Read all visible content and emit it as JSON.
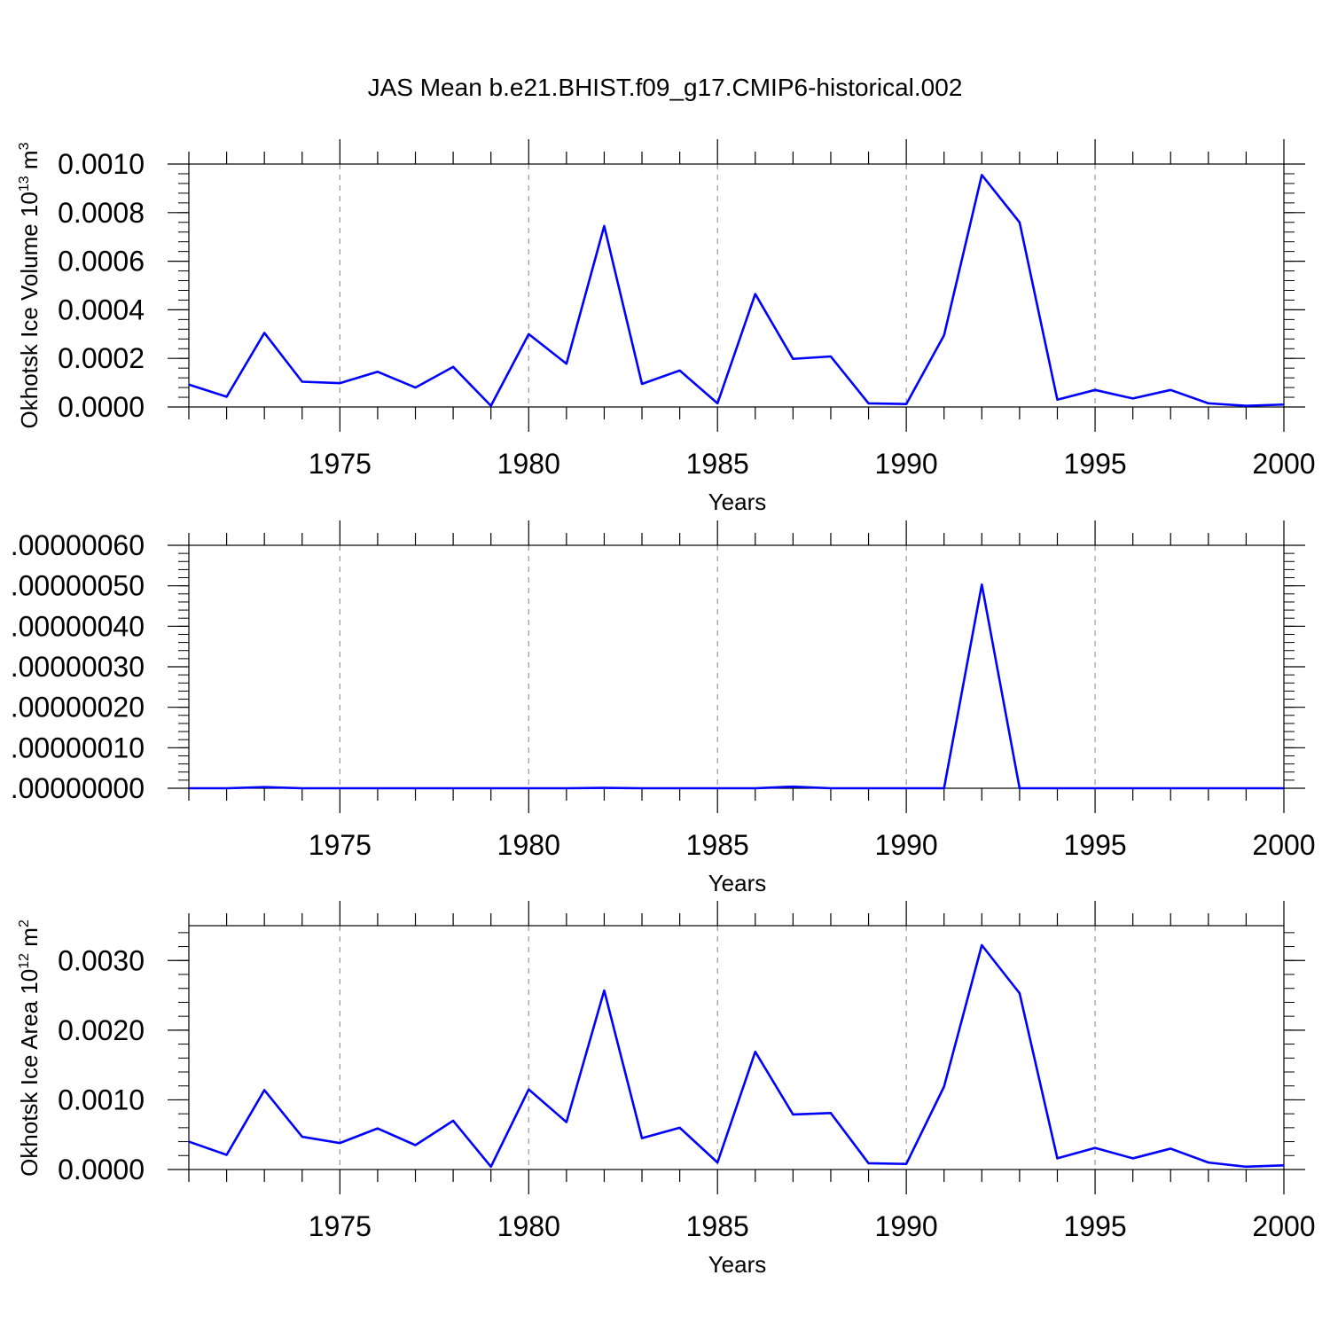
{
  "figure": {
    "title": "JAS Mean b.e21.BHIST.f09_g17.CMIP6-historical.002",
    "line_color": "#0000ff",
    "grid_color": "#999999"
  },
  "chart_data": [
    {
      "type": "line",
      "xlabel": "Years",
      "ylabel": {
        "main": "Okhotsk Ice Volume 10",
        "sup": "13",
        "unit": " m",
        "unit_sup": "3"
      },
      "xlim": [
        1971,
        2000
      ],
      "ylim": [
        0,
        0.001
      ],
      "xticks": [
        "1975",
        "1980",
        "1985",
        "1990",
        "1995",
        "2000"
      ],
      "yticks": [
        "0.0000",
        "0.0002",
        "0.0004",
        "0.0006",
        "0.0008",
        "0.0010"
      ],
      "grid": "vertical dashed at major x ticks",
      "x": [
        1971,
        1972,
        1973,
        1974,
        1975,
        1976,
        1977,
        1978,
        1979,
        1980,
        1981,
        1982,
        1983,
        1984,
        1985,
        1986,
        1987,
        1988,
        1989,
        1990,
        1991,
        1992,
        1993,
        1994,
        1995,
        1996,
        1997,
        1998,
        1999,
        2000
      ],
      "series": [
        {
          "values": [
            9.2e-05,
            4.2e-05,
            0.000305,
            0.000104,
            9.8e-05,
            0.000145,
            8e-05,
            0.000165,
            5e-06,
            0.0003,
            0.000178,
            0.000745,
            9.5e-05,
            0.00015,
            1.5e-05,
            0.000465,
            0.000198,
            0.000208,
            1.5e-05,
            1.2e-05,
            0.000295,
            0.000955,
            0.00076,
            3e-05,
            7e-05,
            3.5e-05,
            7e-05,
            1.5e-05,
            5e-06,
            1e-05
          ]
        }
      ]
    },
    {
      "type": "line",
      "xlabel": "Years",
      "ylabel": {
        "main": "",
        "sup": "",
        "unit": "",
        "unit_sup": ""
      },
      "xlim": [
        1971,
        2000
      ],
      "ylim": [
        0,
        6e-07
      ],
      "xticks": [
        "1975",
        "1980",
        "1985",
        "1990",
        "1995",
        "2000"
      ],
      "yticks": [
        ".00000000",
        ".00000010",
        ".00000020",
        ".00000030",
        ".00000040",
        ".00000050",
        ".00000060"
      ],
      "grid": "vertical dashed at major x ticks",
      "x": [
        1971,
        1972,
        1973,
        1974,
        1975,
        1976,
        1977,
        1978,
        1979,
        1980,
        1981,
        1982,
        1983,
        1984,
        1985,
        1986,
        1987,
        1988,
        1989,
        1990,
        1991,
        1992,
        1993,
        1994,
        1995,
        1996,
        1997,
        1998,
        1999,
        2000
      ],
      "series": [
        {
          "values": [
            0,
            0,
            3e-09,
            0,
            0,
            0,
            0,
            0,
            0,
            0,
            0,
            1e-09,
            0,
            0,
            0,
            0,
            4e-09,
            0,
            0,
            0,
            0,
            5.03e-07,
            0,
            0,
            0,
            0,
            0,
            0,
            0,
            0
          ]
        }
      ]
    },
    {
      "type": "line",
      "xlabel": "Years",
      "ylabel": {
        "main": "Okhotsk Ice Area 10",
        "sup": "12",
        "unit": " m",
        "unit_sup": "2"
      },
      "xlim": [
        1971,
        2000
      ],
      "ylim": [
        0,
        0.0035
      ],
      "xticks": [
        "1975",
        "1980",
        "1985",
        "1990",
        "1995",
        "2000"
      ],
      "yticks": [
        "0.0000",
        "0.0010",
        "0.0020",
        "0.0030"
      ],
      "grid": "vertical dashed at major x ticks",
      "x": [
        1971,
        1972,
        1973,
        1974,
        1975,
        1976,
        1977,
        1978,
        1979,
        1980,
        1981,
        1982,
        1983,
        1984,
        1985,
        1986,
        1987,
        1988,
        1989,
        1990,
        1991,
        1992,
        1993,
        1994,
        1995,
        1996,
        1997,
        1998,
        1999,
        2000
      ],
      "series": [
        {
          "values": [
            0.0004,
            0.00021,
            0.00114,
            0.00047,
            0.00038,
            0.00059,
            0.00035,
            0.0007,
            4e-05,
            0.00115,
            0.00068,
            0.00257,
            0.00045,
            0.0006,
            0.0001,
            0.00169,
            0.00079,
            0.00081,
            9e-05,
            8e-05,
            0.00119,
            0.00322,
            0.00253,
            0.00016,
            0.00031,
            0.00016,
            0.0003,
            0.0001,
            4e-05,
            6e-05
          ]
        }
      ]
    }
  ]
}
